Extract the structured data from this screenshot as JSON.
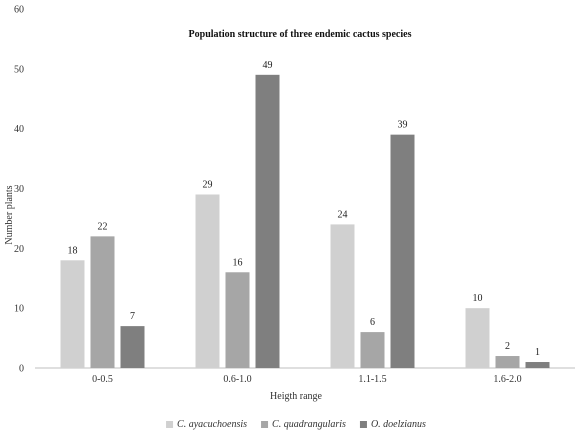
{
  "chart_data": {
    "type": "bar",
    "title": "Population  structure of three endemic  cactus species",
    "xlabel": "Heigth range",
    "ylabel": "Number plants",
    "categories": [
      "0-0.5",
      "0.6-1.0",
      "1.1-1.5",
      "1.6-2.0"
    ],
    "ylim": [
      0,
      60
    ],
    "yticks": [
      "0",
      "10",
      "20",
      "30",
      "40",
      "50",
      "60"
    ],
    "grid": false,
    "legend_position": "bottom",
    "series": [
      {
        "name": "C. ayacuchoensis",
        "values": [
          18,
          29,
          24,
          10
        ],
        "color": "#d0d0d0"
      },
      {
        "name": "C. quadrangularis",
        "values": [
          22,
          16,
          6,
          2
        ],
        "color": "#a6a6a6"
      },
      {
        "name": "O. doelzianus",
        "values": [
          7,
          49,
          39,
          1
        ],
        "color": "#7f7f7f"
      }
    ]
  }
}
